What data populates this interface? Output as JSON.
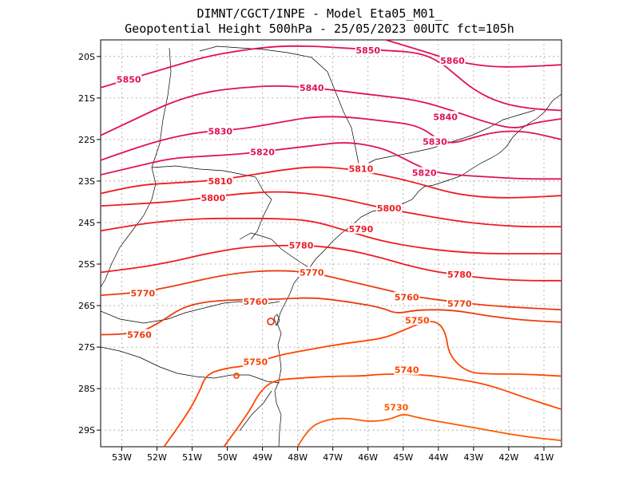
{
  "header": {
    "title_line1": "DIMNT/CGCT/INPE -  Model Eta05_M01_",
    "title_line2": "Geopotential Height 500hPa -  25/05/2023 00UTC fct=105h"
  },
  "axes": {
    "lon_labels": [
      "53W",
      "52W",
      "51W",
      "50W",
      "49W",
      "48W",
      "47W",
      "46W",
      "45W",
      "44W",
      "43W",
      "42W",
      "41W"
    ],
    "lat_labels": [
      "20S",
      "21S",
      "22S",
      "23S",
      "24S",
      "25S",
      "26S",
      "27S",
      "28S",
      "29S"
    ]
  },
  "chart_data": {
    "type": "contour",
    "variable": "Geopotential Height 500hPa",
    "lon_range": [
      -53.6,
      -40.5
    ],
    "lat_range": [
      -29.4,
      -19.6
    ],
    "grid": true,
    "contours": [
      {
        "value": 5860,
        "color": "#e0105a",
        "points": [
          [
            -45.5,
            -19.6
          ],
          [
            -44.5,
            -19.85
          ],
          [
            -43.6,
            -20.1
          ],
          [
            -42.6,
            -20.25
          ],
          [
            -41.6,
            -20.25
          ],
          [
            -40.5,
            -20.2
          ]
        ]
      },
      {
        "value": 5850,
        "color": "#e0105a",
        "points": [
          [
            -53.6,
            -20.75
          ],
          [
            -52.6,
            -20.5
          ],
          [
            -51.6,
            -20.25
          ],
          [
            -50.6,
            -20.0
          ],
          [
            -49.6,
            -19.85
          ],
          [
            -48.6,
            -19.75
          ],
          [
            -47.6,
            -19.75
          ],
          [
            -46.6,
            -19.8
          ],
          [
            -45.6,
            -19.85
          ],
          [
            -44.6,
            -19.9
          ],
          [
            -44.0,
            -20.1
          ],
          [
            -43.5,
            -20.45
          ],
          [
            -43.0,
            -20.8
          ],
          [
            -42.3,
            -21.1
          ],
          [
            -41.5,
            -21.25
          ],
          [
            -40.5,
            -21.3
          ]
        ]
      },
      {
        "value": 5840,
        "color": "#e0105a",
        "points": [
          [
            -53.6,
            -21.9
          ],
          [
            -52.6,
            -21.5
          ],
          [
            -51.6,
            -21.1
          ],
          [
            -50.6,
            -20.85
          ],
          [
            -49.6,
            -20.75
          ],
          [
            -48.6,
            -20.7
          ],
          [
            -47.6,
            -20.75
          ],
          [
            -46.6,
            -20.85
          ],
          [
            -45.6,
            -20.95
          ],
          [
            -44.6,
            -21.05
          ],
          [
            -43.6,
            -21.3
          ],
          [
            -42.6,
            -21.6
          ],
          [
            -41.8,
            -21.75
          ],
          [
            -41.3,
            -21.6
          ],
          [
            -40.5,
            -21.5
          ]
        ]
      },
      {
        "value": 5830,
        "color": "#e0105a",
        "points": [
          [
            -53.6,
            -22.5
          ],
          [
            -52.6,
            -22.2
          ],
          [
            -51.6,
            -21.95
          ],
          [
            -50.6,
            -21.8
          ],
          [
            -49.6,
            -21.75
          ],
          [
            -48.6,
            -21.6
          ],
          [
            -47.6,
            -21.45
          ],
          [
            -46.6,
            -21.45
          ],
          [
            -45.6,
            -21.55
          ],
          [
            -44.6,
            -21.65
          ],
          [
            -44.0,
            -22.0
          ],
          [
            -43.6,
            -22.1
          ],
          [
            -43.0,
            -21.95
          ],
          [
            -42.3,
            -21.8
          ],
          [
            -41.5,
            -21.8
          ],
          [
            -40.5,
            -22.0
          ]
        ]
      },
      {
        "value": 5820,
        "color": "#e0105a",
        "points": [
          [
            -53.6,
            -22.85
          ],
          [
            -52.6,
            -22.65
          ],
          [
            -51.6,
            -22.45
          ],
          [
            -50.6,
            -22.4
          ],
          [
            -49.6,
            -22.35
          ],
          [
            -48.6,
            -22.25
          ],
          [
            -47.6,
            -22.15
          ],
          [
            -46.6,
            -22.05
          ],
          [
            -45.6,
            -22.2
          ],
          [
            -45.0,
            -22.45
          ],
          [
            -44.3,
            -22.75
          ],
          [
            -43.6,
            -22.85
          ],
          [
            -42.6,
            -22.9
          ],
          [
            -41.6,
            -22.95
          ],
          [
            -40.5,
            -22.95
          ]
        ]
      },
      {
        "value": 5810,
        "color": "#ee1c25",
        "points": [
          [
            -53.6,
            -23.3
          ],
          [
            -52.6,
            -23.1
          ],
          [
            -51.6,
            -23.05
          ],
          [
            -50.6,
            -23.0
          ],
          [
            -49.6,
            -22.9
          ],
          [
            -48.6,
            -22.75
          ],
          [
            -47.6,
            -22.65
          ],
          [
            -46.6,
            -22.7
          ],
          [
            -45.6,
            -22.85
          ],
          [
            -44.6,
            -23.05
          ],
          [
            -43.6,
            -23.3
          ],
          [
            -42.6,
            -23.4
          ],
          [
            -41.6,
            -23.4
          ],
          [
            -40.5,
            -23.35
          ]
        ]
      },
      {
        "value": 5800,
        "color": "#ee1c25",
        "points": [
          [
            -53.6,
            -23.6
          ],
          [
            -52.6,
            -23.55
          ],
          [
            -51.6,
            -23.5
          ],
          [
            -50.6,
            -23.4
          ],
          [
            -49.6,
            -23.3
          ],
          [
            -48.6,
            -23.25
          ],
          [
            -47.6,
            -23.3
          ],
          [
            -46.6,
            -23.45
          ],
          [
            -45.6,
            -23.65
          ],
          [
            -44.6,
            -23.8
          ],
          [
            -43.6,
            -23.95
          ],
          [
            -42.6,
            -24.05
          ],
          [
            -41.6,
            -24.1
          ],
          [
            -40.5,
            -24.1
          ]
        ]
      },
      {
        "value": 5790,
        "color": "#ee1c25",
        "points": [
          [
            -53.6,
            -24.2
          ],
          [
            -52.6,
            -24.05
          ],
          [
            -51.6,
            -23.95
          ],
          [
            -50.6,
            -23.9
          ],
          [
            -49.6,
            -23.9
          ],
          [
            -48.6,
            -23.9
          ],
          [
            -47.6,
            -23.95
          ],
          [
            -46.6,
            -24.2
          ],
          [
            -45.6,
            -24.45
          ],
          [
            -44.6,
            -24.6
          ],
          [
            -43.6,
            -24.7
          ],
          [
            -42.6,
            -24.75
          ],
          [
            -41.6,
            -24.75
          ],
          [
            -40.5,
            -24.75
          ]
        ]
      },
      {
        "value": 5780,
        "color": "#ee1c25",
        "points": [
          [
            -53.6,
            -25.2
          ],
          [
            -52.6,
            -25.1
          ],
          [
            -51.6,
            -24.95
          ],
          [
            -50.6,
            -24.75
          ],
          [
            -49.6,
            -24.6
          ],
          [
            -48.6,
            -24.55
          ],
          [
            -47.6,
            -24.55
          ],
          [
            -46.6,
            -24.65
          ],
          [
            -45.6,
            -24.85
          ],
          [
            -44.6,
            -25.1
          ],
          [
            -43.6,
            -25.25
          ],
          [
            -42.6,
            -25.35
          ],
          [
            -41.6,
            -25.4
          ],
          [
            -40.5,
            -25.4
          ]
        ]
      },
      {
        "value": 5770,
        "color": "#ee3a10",
        "points": [
          [
            -53.6,
            -25.75
          ],
          [
            -52.6,
            -25.7
          ],
          [
            -51.6,
            -25.55
          ],
          [
            -50.6,
            -25.35
          ],
          [
            -49.6,
            -25.2
          ],
          [
            -48.6,
            -25.15
          ],
          [
            -47.6,
            -25.2
          ],
          [
            -46.6,
            -25.4
          ],
          [
            -45.6,
            -25.6
          ],
          [
            -44.6,
            -25.8
          ],
          [
            -43.6,
            -25.9
          ],
          [
            -42.6,
            -26.0
          ],
          [
            -41.6,
            -26.05
          ],
          [
            -40.5,
            -26.1
          ]
        ]
      },
      {
        "value": 5760,
        "color": "#ee3a10",
        "points": [
          [
            -53.6,
            -26.7
          ],
          [
            -52.6,
            -26.7
          ],
          [
            -51.9,
            -26.4
          ],
          [
            -51.3,
            -26.05
          ],
          [
            -50.6,
            -25.9
          ],
          [
            -49.6,
            -25.85
          ],
          [
            -48.6,
            -25.85
          ],
          [
            -47.6,
            -25.8
          ],
          [
            -46.6,
            -25.9
          ],
          [
            -45.6,
            -26.05
          ],
          [
            -45.2,
            -26.2
          ],
          [
            -44.6,
            -26.1
          ],
          [
            -43.6,
            -26.1
          ],
          [
            -42.6,
            -26.25
          ],
          [
            -41.6,
            -26.35
          ],
          [
            -40.5,
            -26.4
          ]
        ]
      },
      {
        "value": 5750,
        "color": "#ff4500",
        "points": [
          [
            -51.8,
            -29.4
          ],
          [
            -51.2,
            -28.7
          ],
          [
            -50.8,
            -28.1
          ],
          [
            -50.6,
            -27.65
          ],
          [
            -50.0,
            -27.5
          ],
          [
            -49.4,
            -27.45
          ],
          [
            -48.6,
            -27.2
          ],
          [
            -47.6,
            -27.05
          ],
          [
            -46.6,
            -26.9
          ],
          [
            -45.6,
            -26.8
          ],
          [
            -45.0,
            -26.6
          ],
          [
            -44.6,
            -26.45
          ],
          [
            -44.1,
            -26.35
          ],
          [
            -43.8,
            -26.6
          ],
          [
            -43.7,
            -27.2
          ],
          [
            -43.2,
            -27.6
          ],
          [
            -42.6,
            -27.65
          ],
          [
            -41.6,
            -27.65
          ],
          [
            -40.5,
            -27.7
          ]
        ]
      },
      {
        "value": 5740,
        "color": "#ff4500",
        "points": [
          [
            -50.1,
            -29.4
          ],
          [
            -49.4,
            -28.6
          ],
          [
            -49.1,
            -28.1
          ],
          [
            -48.7,
            -27.8
          ],
          [
            -48.0,
            -27.75
          ],
          [
            -47.0,
            -27.7
          ],
          [
            -46.2,
            -27.7
          ],
          [
            -45.6,
            -27.65
          ],
          [
            -44.6,
            -27.65
          ],
          [
            -43.6,
            -27.75
          ],
          [
            -42.6,
            -27.9
          ],
          [
            -41.6,
            -28.2
          ],
          [
            -40.5,
            -28.5
          ]
        ]
      },
      {
        "value": 5730,
        "color": "#ff5a00",
        "points": [
          [
            -48.0,
            -29.4
          ],
          [
            -47.7,
            -28.95
          ],
          [
            -47.2,
            -28.75
          ],
          [
            -46.6,
            -28.7
          ],
          [
            -46.0,
            -28.8
          ],
          [
            -45.4,
            -28.75
          ],
          [
            -45.0,
            -28.6
          ],
          [
            -44.6,
            -28.7
          ],
          [
            -43.6,
            -28.85
          ],
          [
            -42.6,
            -29.0
          ],
          [
            -41.6,
            -29.15
          ],
          [
            -40.5,
            -29.25
          ]
        ]
      }
    ],
    "labels": [
      {
        "text": "5860",
        "lon": -43.6,
        "lat": -20.1,
        "color": "#e0105a"
      },
      {
        "text": "5850",
        "lon": -52.8,
        "lat": -20.55,
        "color": "#e0105a"
      },
      {
        "text": "5850",
        "lon": -46.0,
        "lat": -19.85,
        "color": "#e0105a"
      },
      {
        "text": "5840",
        "lon": -47.6,
        "lat": -20.75,
        "color": "#e0105a"
      },
      {
        "text": "5840",
        "lon": -43.8,
        "lat": -21.45,
        "color": "#e0105a"
      },
      {
        "text": "5830",
        "lon": -50.2,
        "lat": -21.8,
        "color": "#e0105a"
      },
      {
        "text": "5830",
        "lon": -44.1,
        "lat": -22.05,
        "color": "#e0105a"
      },
      {
        "text": "5820",
        "lon": -49.0,
        "lat": -22.3,
        "color": "#e0105a"
      },
      {
        "text": "5820",
        "lon": -44.4,
        "lat": -22.8,
        "color": "#e0105a"
      },
      {
        "text": "5810",
        "lon": -50.2,
        "lat": -23.0,
        "color": "#ee1c25"
      },
      {
        "text": "5810",
        "lon": -46.2,
        "lat": -22.7,
        "color": "#ee1c25"
      },
      {
        "text": "5800",
        "lon": -50.4,
        "lat": -23.4,
        "color": "#ee1c25"
      },
      {
        "text": "5800",
        "lon": -45.4,
        "lat": -23.65,
        "color": "#ee1c25"
      },
      {
        "text": "5790",
        "lon": -46.2,
        "lat": -24.15,
        "color": "#ee1c25"
      },
      {
        "text": "5780",
        "lon": -47.9,
        "lat": -24.55,
        "color": "#ee1c25"
      },
      {
        "text": "5780",
        "lon": -43.4,
        "lat": -25.25,
        "color": "#ee1c25"
      },
      {
        "text": "5770",
        "lon": -47.6,
        "lat": -25.2,
        "color": "#ee3a10"
      },
      {
        "text": "5770",
        "lon": -52.4,
        "lat": -25.7,
        "color": "#ee3a10"
      },
      {
        "text": "5770",
        "lon": -43.4,
        "lat": -25.95,
        "color": "#ee3a10"
      },
      {
        "text": "5760",
        "lon": -49.2,
        "lat": -25.9,
        "color": "#ee3a10"
      },
      {
        "text": "5760",
        "lon": -52.5,
        "lat": -26.7,
        "color": "#ee3a10"
      },
      {
        "text": "5760",
        "lon": -44.9,
        "lat": -25.8,
        "color": "#ee3a10"
      },
      {
        "text": "5750",
        "lon": -49.2,
        "lat": -27.35,
        "color": "#ff4500"
      },
      {
        "text": "5750",
        "lon": -44.6,
        "lat": -26.35,
        "color": "#ff4500"
      },
      {
        "text": "5740",
        "lon": -44.9,
        "lat": -27.55,
        "color": "#ff4500"
      },
      {
        "text": "5730",
        "lon": -45.2,
        "lat": -28.45,
        "color": "#ff5a00"
      }
    ]
  }
}
